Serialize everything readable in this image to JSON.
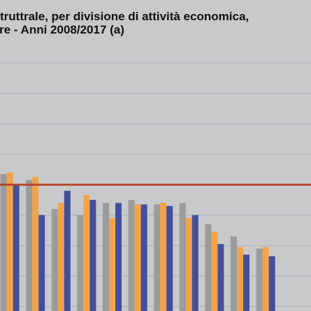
{
  "title_lines": [
    "truttrale, per divisione di attività economica,",
    "re - Anni 2008/2017 (a)"
  ],
  "colors": {
    "background": "#c8c9cb",
    "gridline": "#aeb0b3",
    "reference_line": "#b5482f",
    "series": [
      "#9b9b9c",
      "#f2a34a",
      "#444f9c"
    ]
  },
  "chart_data": {
    "type": "bar",
    "title": "",
    "xlabel": "",
    "ylabel": "",
    "ylim": [
      0,
      9
    ],
    "grid": true,
    "reference_value": 5,
    "categories": [
      "",
      "",
      "",
      "",
      "",
      "",
      "",
      "",
      "",
      "",
      "",
      "",
      ""
    ],
    "series": [
      {
        "values": [
          5.0,
          5.35,
          5.15,
          4.2,
          4.0,
          4.4,
          4.5,
          4.35,
          4.4,
          3.7,
          3.3,
          2.9,
          null
        ]
      },
      {
        "values": [
          null,
          5.4,
          5.25,
          4.4,
          4.65,
          3.9,
          4.35,
          4.4,
          3.9,
          3.45,
          2.95,
          2.95,
          null
        ]
      },
      {
        "values": [
          5.0,
          5.0,
          4.0,
          4.8,
          4.5,
          4.4,
          4.35,
          4.3,
          4.0,
          3.05,
          2.7,
          2.65,
          null
        ]
      }
    ]
  }
}
